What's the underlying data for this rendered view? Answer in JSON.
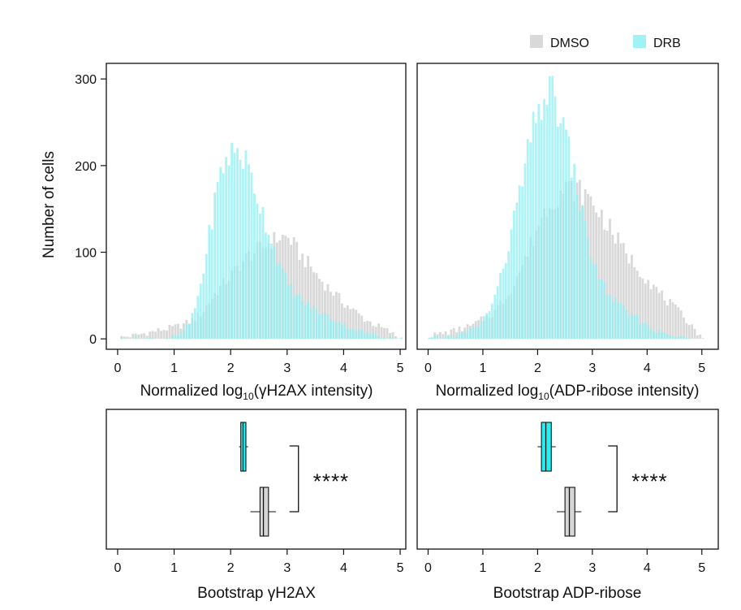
{
  "chart_data": [
    {
      "type": "histogram",
      "panel": "yH2AX-histogram",
      "xlabel_parts": [
        "Normalized log",
        "10",
        "(γH2AX intensity)"
      ],
      "ylabel": "Number of cells",
      "xlim": [
        -0.2,
        5.1
      ],
      "ylim": [
        -12,
        318
      ],
      "x_ticks": [
        "0",
        "1",
        "2",
        "3",
        "4",
        "5"
      ],
      "y_ticks": [
        "0",
        "100",
        "200",
        "300"
      ],
      "series": [
        {
          "name": "DMSO",
          "kind": "peaks",
          "points": [
            [
              0.0,
              1
            ],
            [
              0.3,
              4
            ],
            [
              0.6,
              8
            ],
            [
              0.9,
              12
            ],
            [
              1.1,
              15
            ],
            [
              1.3,
              20
            ],
            [
              1.5,
              30
            ],
            [
              1.7,
              50
            ],
            [
              1.9,
              65
            ],
            [
              2.1,
              80
            ],
            [
              2.3,
              95
            ],
            [
              2.5,
              103
            ],
            [
              2.7,
              112
            ],
            [
              2.9,
              118
            ],
            [
              3.05,
              116
            ],
            [
              3.2,
              100
            ],
            [
              3.4,
              85
            ],
            [
              3.6,
              68
            ],
            [
              3.8,
              55
            ],
            [
              4.0,
              42
            ],
            [
              4.2,
              32
            ],
            [
              4.4,
              22
            ],
            [
              4.6,
              15
            ],
            [
              4.8,
              9
            ],
            [
              4.95,
              2
            ],
            [
              5.0,
              0
            ]
          ]
        },
        {
          "name": "DRB",
          "kind": "peaks",
          "points": [
            [
              0.0,
              0
            ],
            [
              0.9,
              1
            ],
            [
              1.1,
              4
            ],
            [
              1.3,
              20
            ],
            [
              1.4,
              42
            ],
            [
              1.5,
              70
            ],
            [
              1.6,
              110
            ],
            [
              1.7,
              150
            ],
            [
              1.8,
              185
            ],
            [
              1.9,
              205
            ],
            [
              2.0,
              213
            ],
            [
              2.1,
              218
            ],
            [
              2.2,
              213
            ],
            [
              2.3,
              200
            ],
            [
              2.4,
              180
            ],
            [
              2.5,
              160
            ],
            [
              2.6,
              140
            ],
            [
              2.7,
              120
            ],
            [
              2.8,
              100
            ],
            [
              2.9,
              80
            ],
            [
              3.0,
              65
            ],
            [
              3.2,
              48
            ],
            [
              3.4,
              38
            ],
            [
              3.6,
              30
            ],
            [
              3.8,
              24
            ],
            [
              4.0,
              17
            ],
            [
              4.2,
              11
            ],
            [
              4.4,
              7
            ],
            [
              4.6,
              4
            ],
            [
              4.8,
              2
            ],
            [
              5.0,
              0
            ]
          ]
        }
      ]
    },
    {
      "type": "histogram",
      "panel": "ADP-ribose-histogram",
      "xlabel_parts": [
        "Normalized log",
        "10",
        "(ADP-ribose intensity)"
      ],
      "xlim": [
        -0.2,
        5.3
      ],
      "ylim": [
        -12,
        318
      ],
      "x_ticks": [
        "0",
        "1",
        "2",
        "3",
        "4",
        "5"
      ],
      "series": [
        {
          "name": "DMSO",
          "kind": "peaks",
          "points": [
            [
              0.0,
              3
            ],
            [
              0.4,
              8
            ],
            [
              0.8,
              15
            ],
            [
              1.2,
              30
            ],
            [
              1.5,
              55
            ],
            [
              1.8,
              95
            ],
            [
              2.0,
              130
            ],
            [
              2.2,
              155
            ],
            [
              2.4,
              168
            ],
            [
              2.6,
              174
            ],
            [
              2.8,
              170
            ],
            [
              3.0,
              158
            ],
            [
              3.2,
              140
            ],
            [
              3.4,
              120
            ],
            [
              3.6,
              100
            ],
            [
              3.8,
              85
            ],
            [
              4.0,
              70
            ],
            [
              4.2,
              55
            ],
            [
              4.4,
              42
            ],
            [
              4.6,
              30
            ],
            [
              4.8,
              18
            ],
            [
              4.95,
              5
            ],
            [
              5.0,
              0
            ]
          ]
        },
        {
          "name": "DRB",
          "kind": "peaks",
          "points": [
            [
              0.0,
              0
            ],
            [
              0.3,
              2
            ],
            [
              0.6,
              5
            ],
            [
              0.9,
              14
            ],
            [
              1.1,
              30
            ],
            [
              1.3,
              62
            ],
            [
              1.5,
              115
            ],
            [
              1.7,
              175
            ],
            [
              1.9,
              235
            ],
            [
              2.0,
              258
            ],
            [
              2.1,
              278
            ],
            [
              2.2,
              285
            ],
            [
              2.3,
              278
            ],
            [
              2.4,
              262
            ],
            [
              2.5,
              238
            ],
            [
              2.6,
              210
            ],
            [
              2.7,
              180
            ],
            [
              2.8,
              150
            ],
            [
              2.9,
              120
            ],
            [
              3.0,
              95
            ],
            [
              3.1,
              75
            ],
            [
              3.3,
              52
            ],
            [
              3.5,
              38
            ],
            [
              3.7,
              28
            ],
            [
              3.9,
              20
            ],
            [
              4.1,
              12
            ],
            [
              4.3,
              6
            ],
            [
              4.5,
              3
            ],
            [
              4.7,
              1
            ],
            [
              4.9,
              0
            ]
          ]
        }
      ]
    },
    {
      "type": "box",
      "panel": "bootstrap-yH2AX",
      "xlabel": "Bootstrap γH2AX",
      "xlim": [
        -0.2,
        5.1
      ],
      "x_ticks": [
        "0",
        "1",
        "2",
        "3",
        "4",
        "5"
      ],
      "boxes": [
        {
          "name": "DRB",
          "whisker_low": 2.15,
          "q1": 2.18,
          "median": 2.22,
          "q3": 2.27,
          "whisker_high": 2.31
        },
        {
          "name": "DMSO",
          "whisker_low": 2.35,
          "q1": 2.52,
          "median": 2.58,
          "q3": 2.67,
          "whisker_high": 2.8
        }
      ],
      "significance": "****"
    },
    {
      "type": "box",
      "panel": "bootstrap-ADP-ribose",
      "xlabel": "Bootstrap ADP-ribose",
      "xlim": [
        -0.2,
        5.3
      ],
      "x_ticks": [
        "0",
        "1",
        "2",
        "3",
        "4",
        "5"
      ],
      "boxes": [
        {
          "name": "DRB",
          "whisker_low": 2.0,
          "q1": 2.07,
          "median": 2.15,
          "q3": 2.25,
          "whisker_high": 2.33
        },
        {
          "name": "DMSO",
          "whisker_low": 2.35,
          "q1": 2.5,
          "median": 2.58,
          "q3": 2.68,
          "whisker_high": 2.8
        }
      ],
      "significance": "****"
    }
  ],
  "legend": [
    {
      "name": "DMSO",
      "color": "#d9d9d9"
    },
    {
      "name": "DRB",
      "color": "#9ff3f4"
    }
  ],
  "colors": {
    "dmso_fill": "#d9d9d9",
    "drb_fill": "#8ff0f2",
    "overlap_fill": "#a9dfdf",
    "drb_box": "#22f0f2",
    "dmso_box": "#d6d6d6"
  }
}
